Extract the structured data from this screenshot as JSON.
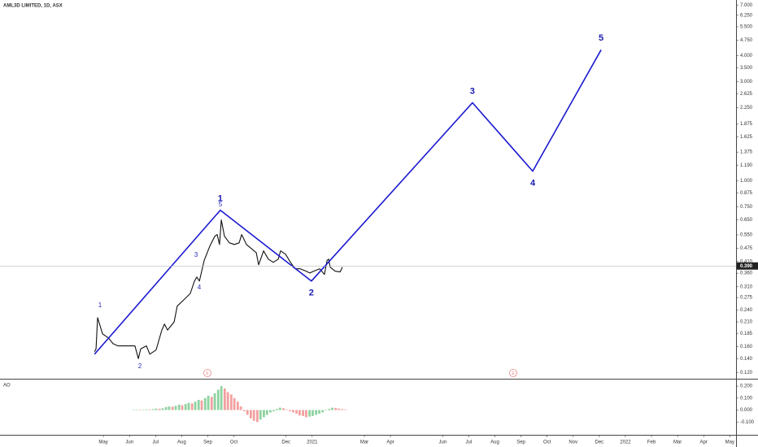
{
  "chart_data": [
    {
      "type": "line",
      "title": "AML3D LIMITED, 1D, ASX",
      "log_scale": true,
      "xlim": [
        -3.96,
        24.24
      ],
      "ylim": [
        0.112,
        7.4
      ],
      "xticks": [
        {
          "value": 0,
          "label": "May"
        },
        {
          "value": 1,
          "label": "Jun"
        },
        {
          "value": 2,
          "label": "Jul"
        },
        {
          "value": 3,
          "label": "Aug"
        },
        {
          "value": 4,
          "label": "Sep"
        },
        {
          "value": 5,
          "label": "Oct"
        },
        {
          "value": 7,
          "label": "Dec"
        },
        {
          "value": 8,
          "label": "2021"
        },
        {
          "value": 10,
          "label": "Mar"
        },
        {
          "value": 11,
          "label": "Apr"
        },
        {
          "value": 13,
          "label": "Jun"
        },
        {
          "value": 14,
          "label": "Jul"
        },
        {
          "value": 15,
          "label": "Aug"
        },
        {
          "value": 16,
          "label": "Sep"
        },
        {
          "value": 17,
          "label": "Oct"
        },
        {
          "value": 18,
          "label": "Nov"
        },
        {
          "value": 19,
          "label": "Dec"
        },
        {
          "value": 20,
          "label": "2022"
        },
        {
          "value": 21,
          "label": "Feb"
        },
        {
          "value": 22,
          "label": "Mar"
        },
        {
          "value": 23,
          "label": "Apr"
        },
        {
          "value": 24,
          "label": "May"
        }
      ],
      "yticks": [
        {
          "value": 7,
          "label": "7.000"
        },
        {
          "value": 6.25,
          "label": "6.250"
        },
        {
          "value": 5.5,
          "label": "5.500"
        },
        {
          "value": 4.75,
          "label": "4.750"
        },
        {
          "value": 4,
          "label": "4.000"
        },
        {
          "value": 3.5,
          "label": "3.500"
        },
        {
          "value": 3,
          "label": "3.000"
        },
        {
          "value": 2.625,
          "label": "2.625"
        },
        {
          "value": 2.25,
          "label": "2.250"
        },
        {
          "value": 1.875,
          "label": "1.875"
        },
        {
          "value": 1.625,
          "label": "1.625"
        },
        {
          "value": 1.375,
          "label": "1.375"
        },
        {
          "value": 1.19,
          "label": "1.190"
        },
        {
          "value": 1,
          "label": "1.000"
        },
        {
          "value": 0.875,
          "label": "0.875"
        },
        {
          "value": 0.75,
          "label": "0.750"
        },
        {
          "value": 0.65,
          "label": "0.650"
        },
        {
          "value": 0.55,
          "label": "0.550"
        },
        {
          "value": 0.475,
          "label": "0.475"
        },
        {
          "value": 0.41,
          "label": "0.410"
        },
        {
          "value": 0.36,
          "label": "0.360"
        },
        {
          "value": 0.31,
          "label": "0.310"
        },
        {
          "value": 0.275,
          "label": "0.275"
        },
        {
          "value": 0.24,
          "label": "0.240"
        },
        {
          "value": 0.21,
          "label": "0.210"
        },
        {
          "value": 0.185,
          "label": "0.185"
        },
        {
          "value": 0.16,
          "label": "0.160"
        },
        {
          "value": 0.14,
          "label": "0.140"
        },
        {
          "value": 0.12,
          "label": "0.120"
        }
      ],
      "last_price": {
        "value": 0.39,
        "label": "0.390"
      },
      "series": [
        {
          "color": "#111111",
          "x": [
            -0.34,
            -0.28,
            -0.22,
            -0.03,
            0.19,
            0.37,
            0.56,
            0.75,
            0.97,
            1.21,
            1.34,
            1.43,
            1.65,
            1.78,
            2.02,
            2.24,
            2.34,
            2.46,
            2.71,
            2.83,
            3.08,
            3.33,
            3.49,
            3.58,
            3.68,
            3.86,
            4.08,
            4.27,
            4.36,
            4.45,
            4.52,
            4.64,
            4.83,
            5.02,
            5.2,
            5.3,
            5.48,
            5.67,
            5.86,
            5.95,
            6.14,
            6.32,
            6.51,
            6.7,
            6.79,
            6.98,
            7.17,
            7.35,
            7.54,
            7.73,
            7.91,
            8.1,
            8.29,
            8.47,
            8.57,
            8.63,
            8.69,
            8.88,
            9.07,
            9.16
          ],
          "values": [
            0.151,
            0.156,
            0.22,
            0.184,
            0.176,
            0.165,
            0.161,
            0.161,
            0.161,
            0.161,
            0.14,
            0.156,
            0.161,
            0.147,
            0.154,
            0.192,
            0.205,
            0.192,
            0.21,
            0.25,
            0.268,
            0.288,
            0.33,
            0.345,
            0.33,
            0.414,
            0.486,
            0.542,
            0.552,
            0.495,
            0.649,
            0.542,
            0.504,
            0.495,
            0.504,
            0.552,
            0.495,
            0.473,
            0.452,
            0.395,
            0.461,
            0.421,
            0.406,
            0.421,
            0.461,
            0.444,
            0.406,
            0.378,
            0.378,
            0.37,
            0.361,
            0.37,
            0.378,
            0.355,
            0.414,
            0.421,
            0.385,
            0.368,
            0.365,
            0.385
          ]
        },
        {
          "color": "#1a1ad0",
          "x": [
            -0.34,
            4.48,
            7.97,
            14.14,
            16.45,
            19.07
          ],
          "values": [
            0.147,
            0.723,
            0.33,
            2.375,
            1.114,
            4.264
          ],
          "labels": [
            null,
            "1",
            "2",
            "3",
            "4",
            "5"
          ]
        }
      ],
      "annotations": [
        "1",
        "2",
        "3",
        "4",
        "5"
      ]
    },
    {
      "type": "bar",
      "title": "AO",
      "ylim": [
        -0.207,
        0.255
      ],
      "yticks": [
        {
          "value": 0.2,
          "label": "0.200"
        },
        {
          "value": 0.1,
          "label": "0.100"
        },
        {
          "value": 0,
          "label": "0.000"
        },
        {
          "value": -0.1,
          "label": "-0.100"
        }
      ],
      "up_color": "#8fd3a0",
      "down_color": "#f2a0a0",
      "x": [
        1.15,
        1.27,
        1.4,
        1.52,
        1.65,
        1.77,
        1.9,
        2.02,
        2.15,
        2.27,
        2.4,
        2.52,
        2.65,
        2.77,
        2.9,
        3.02,
        3.15,
        3.27,
        3.4,
        3.52,
        3.65,
        3.77,
        3.9,
        4.02,
        4.15,
        4.27,
        4.4,
        4.52,
        4.65,
        4.77,
        4.9,
        5.02,
        5.15,
        5.27,
        5.4,
        5.52,
        5.65,
        5.77,
        5.9,
        6.02,
        6.15,
        6.27,
        6.4,
        6.52,
        6.65,
        6.77,
        6.9,
        7.02,
        7.15,
        7.27,
        7.4,
        7.52,
        7.65,
        7.77,
        7.9,
        8.02,
        8.15,
        8.27,
        8.4,
        8.52,
        8.65,
        8.77,
        8.9,
        9.02,
        9.15,
        9.27
      ],
      "values": [
        0.002,
        0.003,
        0.001,
        0.004,
        0.006,
        0.005,
        0.008,
        0.012,
        0.01,
        0.015,
        0.025,
        0.03,
        0.028,
        0.035,
        0.045,
        0.04,
        0.05,
        0.06,
        0.055,
        0.07,
        0.085,
        0.08,
        0.1,
        0.12,
        0.11,
        0.14,
        0.17,
        0.2,
        0.18,
        0.15,
        0.13,
        0.1,
        0.07,
        0.03,
        -0.01,
        -0.04,
        -0.07,
        -0.09,
        -0.1,
        -0.08,
        -0.06,
        -0.04,
        -0.02,
        -0.01,
        0.01,
        0.02,
        0.015,
        0.005,
        -0.01,
        -0.02,
        -0.03,
        -0.045,
        -0.05,
        -0.06,
        -0.055,
        -0.05,
        -0.04,
        -0.03,
        -0.02,
        0.0,
        0.01,
        0.02,
        0.018,
        0.012,
        0.008,
        0.005
      ]
    }
  ]
}
